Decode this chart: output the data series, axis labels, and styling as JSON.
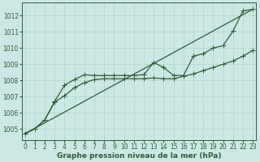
{
  "title": "Graphe pression niveau de la mer (hPa)",
  "bg_color": "#cce8e4",
  "grid_color": "#b0d4ce",
  "line_color": "#2d5e38",
  "ylim": [
    1004.3,
    1012.8
  ],
  "xlim": [
    -0.3,
    23.3
  ],
  "yticks": [
    1005,
    1006,
    1007,
    1008,
    1009,
    1010,
    1011,
    1012
  ],
  "xticks": [
    0,
    1,
    2,
    3,
    4,
    5,
    6,
    7,
    8,
    9,
    10,
    11,
    12,
    13,
    14,
    15,
    16,
    17,
    18,
    19,
    20,
    21,
    22,
    23
  ],
  "trend_x": [
    0,
    23
  ],
  "trend_y": [
    1004.7,
    1012.4
  ],
  "lower_x": [
    0,
    1,
    2,
    3,
    4,
    5,
    6,
    7,
    8,
    9,
    10,
    11,
    12,
    13,
    14,
    15,
    16,
    17,
    18,
    19,
    20,
    21,
    22,
    23
  ],
  "lower_y": [
    1004.7,
    1005.0,
    1005.55,
    1006.65,
    1007.05,
    1007.55,
    1007.85,
    1008.05,
    1008.1,
    1008.1,
    1008.1,
    1008.1,
    1008.1,
    1008.15,
    1008.1,
    1008.1,
    1008.25,
    1008.4,
    1008.6,
    1008.8,
    1009.0,
    1009.2,
    1009.5,
    1009.85
  ],
  "upper_x": [
    0,
    1,
    2,
    3,
    4,
    5,
    6,
    7,
    8,
    9,
    10,
    11,
    12,
    13,
    14,
    15,
    16,
    17,
    18,
    19,
    20,
    21,
    22,
    23
  ],
  "upper_y": [
    1004.7,
    1005.0,
    1005.55,
    1006.7,
    1007.7,
    1008.05,
    1008.35,
    1008.3,
    1008.3,
    1008.3,
    1008.3,
    1008.3,
    1008.35,
    1009.1,
    1008.8,
    1008.3,
    1008.3,
    1009.5,
    1009.65,
    1010.0,
    1010.15,
    1011.05,
    1012.3,
    1012.4
  ],
  "marker_size": 2.2,
  "lw": 0.9,
  "font_size_ticks": 5.5,
  "font_size_label": 6.5
}
